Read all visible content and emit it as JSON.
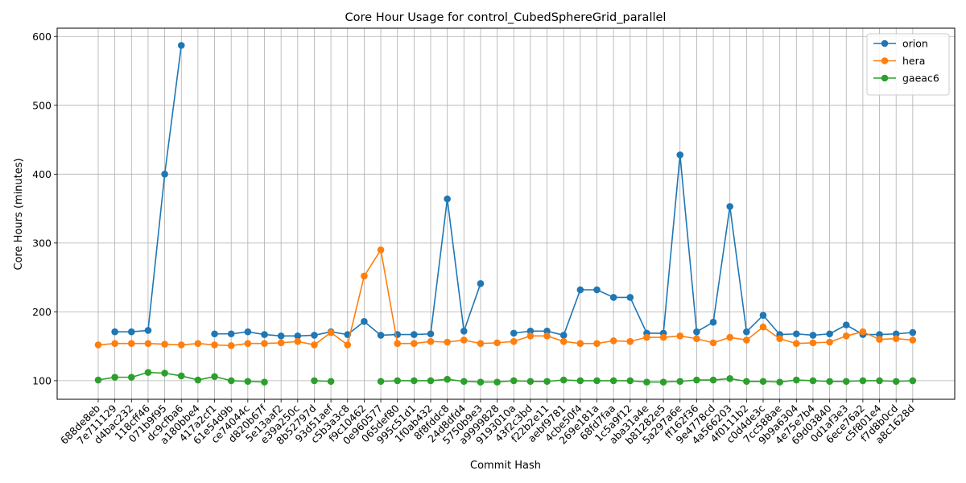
{
  "chart_data": {
    "type": "line",
    "title": "Core Hour Usage for control_CubedSphereGrid_parallel",
    "xlabel": "Commit Hash",
    "ylabel": "Core Hours (minutes)",
    "ylim": [
      73,
      612
    ],
    "yticks": [
      100,
      200,
      300,
      400,
      500,
      600
    ],
    "grid": true,
    "legend_position": "top-right",
    "categories": [
      "688de8eb",
      "7e711129",
      "d4bac232",
      "118cff46",
      "071b9f95",
      "dc9cfba6",
      "a180bbe4",
      "417a2cf1",
      "61e54d9b",
      "ce74044c",
      "d820b67f",
      "5e13aaf2",
      "e39a250c",
      "8b52797d",
      "93d51aef",
      "c5b3a3c8",
      "f9c10462",
      "0e960577",
      "065def80",
      "995c51d1",
      "1f0ab432",
      "8f8fddc8",
      "24d8dfd4",
      "5750b9e3",
      "a9999828",
      "9193010a",
      "43f2c3bd",
      "f22b2e11",
      "aebf9781",
      "4cbe50f4",
      "269e181a",
      "68fd7faa",
      "1c5a9f12",
      "aba31a4e",
      "b81282e5",
      "5a297a6e",
      "ff162f36",
      "9e4778cd",
      "4a566203",
      "4f0111b2",
      "c0d4de3c",
      "7cc588ae",
      "9b9a6304",
      "4e75e7b4",
      "69d03840",
      "0d1af3e3",
      "6ece76a2",
      "c5f801e4",
      "f7d8b0cd",
      "a8c1628d"
    ],
    "series": [
      {
        "name": "orion",
        "color": "#1f77b4",
        "values": [
          null,
          171,
          171,
          173,
          400,
          587,
          null,
          168,
          168,
          171,
          167,
          165,
          165,
          166,
          171,
          167,
          186,
          166,
          167,
          167,
          168,
          364,
          172,
          241,
          null,
          169,
          172,
          172,
          166,
          232,
          232,
          221,
          221,
          169,
          169,
          428,
          171,
          185,
          353,
          171,
          195,
          167,
          168,
          166,
          168,
          181,
          167,
          167,
          168,
          170
        ]
      },
      {
        "name": "hera",
        "color": "#ff7f0e",
        "values": [
          152,
          154,
          154,
          154,
          153,
          152,
          154,
          152,
          151,
          154,
          154,
          155,
          157,
          152,
          170,
          152,
          252,
          290,
          154,
          154,
          157,
          156,
          159,
          154,
          155,
          157,
          165,
          165,
          157,
          154,
          154,
          158,
          157,
          163,
          163,
          165,
          161,
          155,
          163,
          159,
          178,
          161,
          154,
          155,
          156,
          165,
          171,
          160,
          161,
          159
        ]
      },
      {
        "name": "gaeac6",
        "color": "#2ca02c",
        "values": [
          101,
          105,
          105,
          112,
          111,
          107,
          101,
          106,
          100,
          99,
          98,
          null,
          null,
          100,
          99,
          null,
          null,
          99,
          100,
          100,
          100,
          102,
          99,
          98,
          98,
          100,
          99,
          99,
          101,
          100,
          100,
          100,
          100,
          98,
          98,
          99,
          101,
          101,
          103,
          99,
          99,
          98,
          101,
          100,
          99,
          99,
          100,
          100,
          99,
          100
        ]
      }
    ]
  }
}
